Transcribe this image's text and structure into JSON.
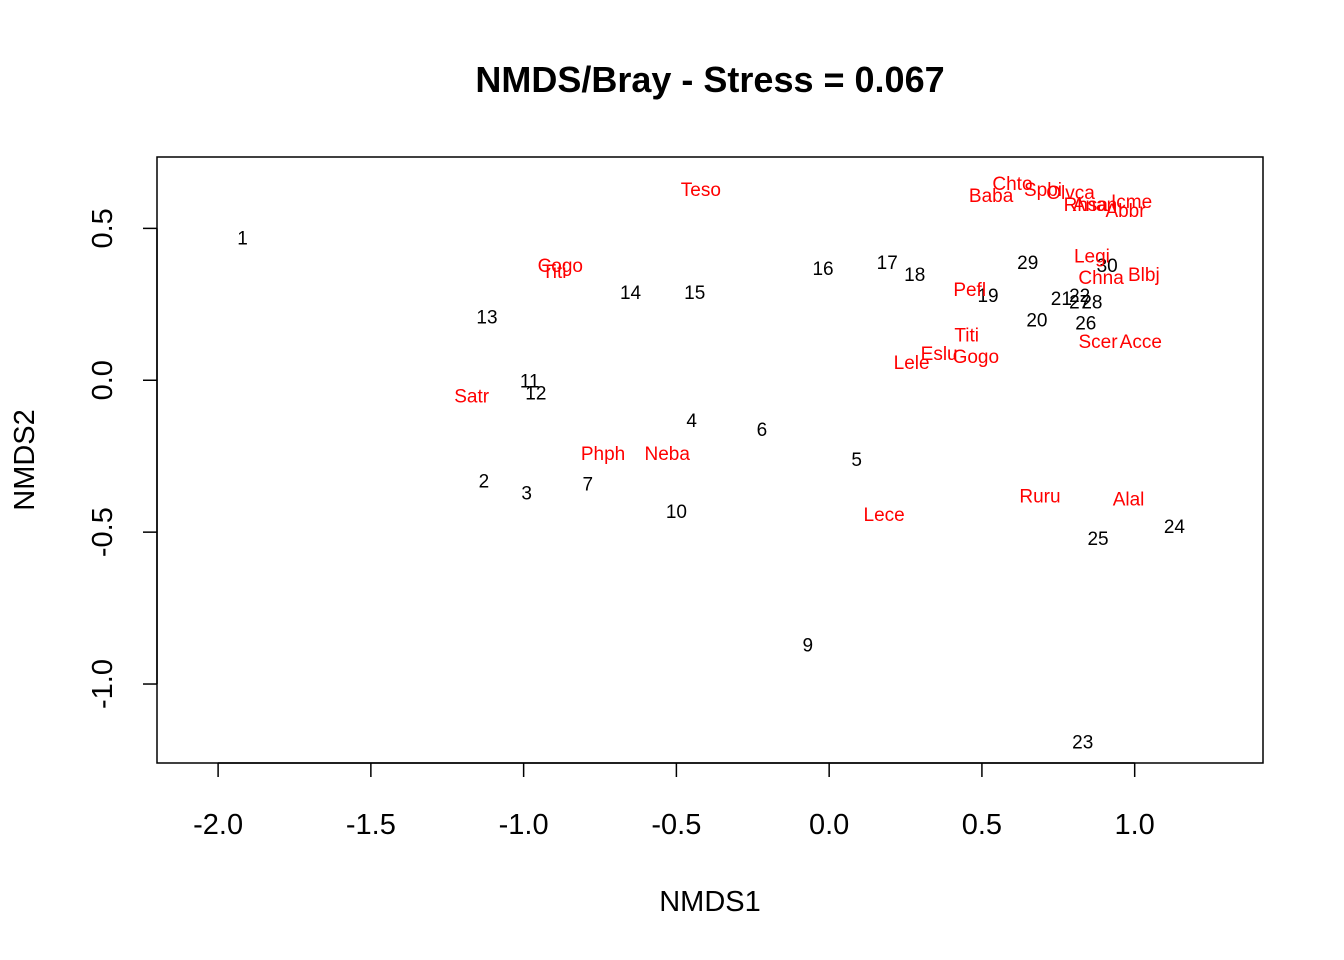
{
  "chart_data": {
    "type": "scatter",
    "title": "NMDS/Bray - Stress = 0.067",
    "xlabel": "NMDS1",
    "ylabel": "NMDS2",
    "xlim": [
      -2.2,
      1.42
    ],
    "ylim": [
      -1.26,
      0.735
    ],
    "xticks": [
      -2.0,
      -1.5,
      -1.0,
      -0.5,
      0.0,
      0.5,
      1.0
    ],
    "xtick_labels": [
      "-2.0",
      "-1.5",
      "-1.0",
      "-0.5",
      "0.0",
      "0.5",
      "1.0"
    ],
    "yticks": [
      -1.0,
      -0.5,
      0.0,
      0.5
    ],
    "ytick_labels": [
      "-1.0",
      "-0.5",
      "0.0",
      "0.5"
    ],
    "grid": false,
    "colors": {
      "sites": "#000000",
      "species": "#ff0000"
    },
    "series": [
      {
        "points": [
          {
            "label": "1",
            "x": -1.92,
            "y": 0.47
          },
          {
            "label": "2",
            "x": -1.13,
            "y": -0.33
          },
          {
            "label": "3",
            "x": -0.99,
            "y": -0.37
          },
          {
            "label": "4",
            "x": -0.45,
            "y": -0.13
          },
          {
            "label": "5",
            "x": 0.09,
            "y": -0.26
          },
          {
            "label": "6",
            "x": -0.22,
            "y": -0.16
          },
          {
            "label": "7",
            "x": -0.79,
            "y": -0.34
          },
          {
            "label": "9",
            "x": -0.07,
            "y": -0.87
          },
          {
            "label": "10",
            "x": -0.5,
            "y": -0.43
          },
          {
            "label": "11",
            "x": -0.98,
            "y": 0.0
          },
          {
            "label": "12",
            "x": -0.96,
            "y": -0.04
          },
          {
            "label": "13",
            "x": -1.12,
            "y": 0.21
          },
          {
            "label": "14",
            "x": -0.65,
            "y": 0.29
          },
          {
            "label": "15",
            "x": -0.44,
            "y": 0.29
          },
          {
            "label": "16",
            "x": -0.02,
            "y": 0.37
          },
          {
            "label": "17",
            "x": 0.19,
            "y": 0.39
          },
          {
            "label": "18",
            "x": 0.28,
            "y": 0.35
          },
          {
            "label": "19",
            "x": 0.52,
            "y": 0.28
          },
          {
            "label": "20",
            "x": 0.68,
            "y": 0.2
          },
          {
            "label": "21",
            "x": 0.76,
            "y": 0.27
          },
          {
            "label": "22",
            "x": 0.82,
            "y": 0.28
          },
          {
            "label": "23",
            "x": 0.83,
            "y": -1.19
          },
          {
            "label": "24",
            "x": 1.13,
            "y": -0.48
          },
          {
            "label": "25",
            "x": 0.88,
            "y": -0.52
          },
          {
            "label": "26",
            "x": 0.84,
            "y": 0.19
          },
          {
            "label": "27",
            "x": 0.82,
            "y": 0.26
          },
          {
            "label": "28",
            "x": 0.86,
            "y": 0.26
          },
          {
            "label": "29",
            "x": 0.65,
            "y": 0.39
          },
          {
            "label": "30",
            "x": 0.91,
            "y": 0.38
          }
        ]
      },
      {
        "points": [
          {
            "label": "Teso",
            "x": -0.42,
            "y": 0.63
          },
          {
            "label": "Cogo",
            "x": -0.88,
            "y": 0.38
          },
          {
            "label": "Titi",
            "x": -0.9,
            "y": 0.36
          },
          {
            "label": "Satr",
            "x": -1.17,
            "y": -0.05
          },
          {
            "label": "Phph",
            "x": -0.74,
            "y": -0.24
          },
          {
            "label": "Neba",
            "x": -0.53,
            "y": -0.24
          },
          {
            "label": "Lece",
            "x": 0.18,
            "y": -0.44
          },
          {
            "label": "Ruru",
            "x": 0.69,
            "y": -0.38
          },
          {
            "label": "Alal",
            "x": 0.98,
            "y": -0.39
          },
          {
            "label": "Baba",
            "x": 0.53,
            "y": 0.61
          },
          {
            "label": "Chto",
            "x": 0.6,
            "y": 0.65
          },
          {
            "label": "Spbi",
            "x": 0.7,
            "y": 0.63
          },
          {
            "label": "Olvca",
            "x": 0.79,
            "y": 0.62
          },
          {
            "label": "Rhsa",
            "x": 0.84,
            "y": 0.58
          },
          {
            "label": "Anan",
            "x": 0.87,
            "y": 0.58
          },
          {
            "label": "Icme",
            "x": 0.99,
            "y": 0.59
          },
          {
            "label": "Abbr",
            "x": 0.97,
            "y": 0.56
          },
          {
            "label": "Legi",
            "x": 0.86,
            "y": 0.41
          },
          {
            "label": "Chna",
            "x": 0.89,
            "y": 0.34
          },
          {
            "label": "Blbj",
            "x": 1.03,
            "y": 0.35
          },
          {
            "label": "Pefl",
            "x": 0.46,
            "y": 0.3
          },
          {
            "label": "Titi",
            "x": 0.45,
            "y": 0.15
          },
          {
            "label": "Gogo",
            "x": 0.48,
            "y": 0.08
          },
          {
            "label": "Eslu",
            "x": 0.36,
            "y": 0.09
          },
          {
            "label": "Lele",
            "x": 0.27,
            "y": 0.06
          },
          {
            "label": "Scer",
            "x": 0.88,
            "y": 0.13
          },
          {
            "label": "Acce",
            "x": 1.02,
            "y": 0.13
          }
        ]
      }
    ]
  }
}
